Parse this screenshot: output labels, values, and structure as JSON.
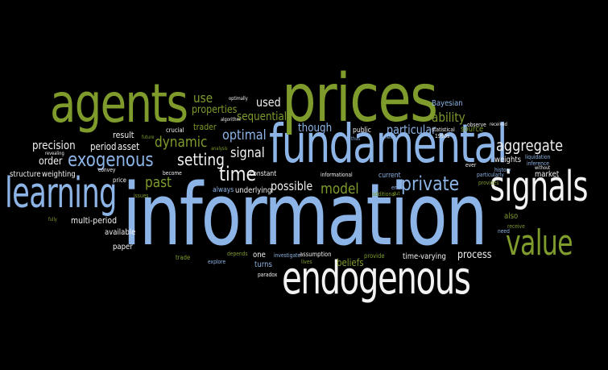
{
  "colors": {
    "background": "#000000",
    "green": "#7e9b2c",
    "blue": "#8db4e6",
    "white": "#f2f2f2",
    "grey": "#a9a9a9"
  },
  "words": [
    {
      "id": "information",
      "text": "information",
      "color": "blue"
    },
    {
      "id": "fundamental",
      "text": "fundamental",
      "color": "blue"
    },
    {
      "id": "prices",
      "text": "prices",
      "color": "green"
    },
    {
      "id": "agents",
      "text": "agents",
      "color": "green"
    },
    {
      "id": "signals",
      "text": "signals",
      "color": "white"
    },
    {
      "id": "endogenous",
      "text": "endogenous",
      "color": "white"
    },
    {
      "id": "learning",
      "text": "learning",
      "color": "blue"
    },
    {
      "id": "value",
      "text": "value",
      "color": "green"
    },
    {
      "id": "exogenous",
      "text": "exogenous",
      "color": "blue"
    },
    {
      "id": "private",
      "text": "private",
      "color": "blue"
    },
    {
      "id": "time",
      "text": "time",
      "color": "white"
    },
    {
      "id": "setting",
      "text": "setting",
      "color": "white"
    },
    {
      "id": "aggregate",
      "text": "aggregate",
      "color": "white"
    },
    {
      "id": "optimal",
      "text": "optimal",
      "color": "blue"
    },
    {
      "id": "dynamic",
      "text": "dynamic",
      "color": "green"
    },
    {
      "id": "past",
      "text": "past",
      "color": "green"
    },
    {
      "id": "signal",
      "text": "signal",
      "color": "white"
    },
    {
      "id": "model",
      "text": "model",
      "color": "green"
    },
    {
      "id": "possible",
      "text": "possible",
      "color": "white"
    },
    {
      "id": "use",
      "text": "use",
      "color": "green"
    },
    {
      "id": "used",
      "text": "used",
      "color": "white"
    },
    {
      "id": "properties",
      "text": "properties",
      "color": "green"
    },
    {
      "id": "sequential",
      "text": "sequential",
      "color": "green"
    },
    {
      "id": "ability",
      "text": "ability",
      "color": "green"
    },
    {
      "id": "though",
      "text": "though",
      "color": "blue"
    },
    {
      "id": "particular",
      "text": "particular",
      "color": "blue"
    },
    {
      "id": "precision",
      "text": "precision",
      "color": "white"
    },
    {
      "id": "period",
      "text": "period",
      "color": "white"
    },
    {
      "id": "asset",
      "text": "asset",
      "color": "white"
    },
    {
      "id": "order",
      "text": "order",
      "color": "white"
    },
    {
      "id": "process",
      "text": "process",
      "color": "white"
    },
    {
      "id": "beliefs",
      "text": "beliefs",
      "color": "green"
    },
    {
      "id": "weights",
      "text": "weights",
      "color": "white"
    },
    {
      "id": "source",
      "text": "source",
      "color": "green"
    },
    {
      "id": "bayesian",
      "text": "Bayesian",
      "color": "blue"
    },
    {
      "id": "result",
      "text": "result",
      "color": "white"
    },
    {
      "id": "trader",
      "text": "trader",
      "color": "green"
    },
    {
      "id": "crucial",
      "text": "crucial",
      "color": "white"
    },
    {
      "id": "structure",
      "text": "structure",
      "color": "white"
    },
    {
      "id": "weighting",
      "text": "weighting",
      "color": "white"
    },
    {
      "id": "multi-period",
      "text": "multi-period",
      "color": "white"
    },
    {
      "id": "available",
      "text": "available",
      "color": "white"
    },
    {
      "id": "paper",
      "text": "paper",
      "color": "white"
    },
    {
      "id": "constant",
      "text": "constant",
      "color": "white"
    },
    {
      "id": "underlying",
      "text": "underlying",
      "color": "white"
    },
    {
      "id": "always",
      "text": "always",
      "color": "blue"
    },
    {
      "id": "one",
      "text": "one",
      "color": "white"
    },
    {
      "id": "turns",
      "text": "turns",
      "color": "blue"
    },
    {
      "id": "paradox",
      "text": "paradox",
      "color": "white"
    },
    {
      "id": "explore",
      "text": "explore",
      "color": "blue"
    },
    {
      "id": "trade",
      "text": "trade",
      "color": "green"
    },
    {
      "id": "depends",
      "text": "depends",
      "color": "green"
    },
    {
      "id": "investigate",
      "text": "investigate",
      "color": "blue"
    },
    {
      "id": "assumption",
      "text": "assumption",
      "color": "white"
    },
    {
      "id": "provide",
      "text": "provide",
      "color": "green"
    },
    {
      "id": "time-varying",
      "text": "time-varying",
      "color": "white"
    },
    {
      "id": "current",
      "text": "current",
      "color": "blue"
    },
    {
      "id": "additional",
      "text": "additional",
      "color": "green"
    },
    {
      "id": "informational",
      "text": "informational",
      "color": "white"
    },
    {
      "id": "market",
      "text": "market",
      "color": "white"
    },
    {
      "id": "also",
      "text": "also",
      "color": "green"
    },
    {
      "id": "receive",
      "text": "receive",
      "color": "green"
    },
    {
      "id": "need",
      "text": "need",
      "color": "blue"
    },
    {
      "id": "liquidation",
      "text": "liquidation",
      "color": "blue"
    },
    {
      "id": "inference",
      "text": "inference",
      "color": "blue"
    },
    {
      "id": "without",
      "text": "without",
      "color": "white"
    },
    {
      "id": "history",
      "text": "history",
      "color": "blue"
    },
    {
      "id": "public",
      "text": "public",
      "color": "white"
    },
    {
      "id": "statistical",
      "text": "statistical",
      "color": "white"
    },
    {
      "id": "observe",
      "text": "observe",
      "color": "white"
    },
    {
      "id": "received",
      "text": "received",
      "color": "white"
    },
    {
      "id": "1990s",
      "text": "1990s",
      "color": "white"
    },
    {
      "id": "ever",
      "text": "ever",
      "color": "white"
    },
    {
      "id": "provides",
      "text": "provides",
      "color": "green"
    },
    {
      "id": "particularly",
      "text": "particularly",
      "color": "blue"
    },
    {
      "id": "price",
      "text": "price",
      "color": "white"
    },
    {
      "id": "convey",
      "text": "convey",
      "color": "white"
    },
    {
      "id": "revealing",
      "text": "revealing",
      "color": "white"
    },
    {
      "id": "issues",
      "text": "issues",
      "color": "green"
    },
    {
      "id": "become",
      "text": "become",
      "color": "white"
    },
    {
      "id": "optimally",
      "text": "optimally",
      "color": "white"
    },
    {
      "id": "algorithm",
      "text": "algorithm",
      "color": "white"
    },
    {
      "id": "future",
      "text": "future",
      "color": "green"
    },
    {
      "id": "means",
      "text": "means",
      "color": "blue"
    },
    {
      "id": "end",
      "text": "end",
      "color": "blue"
    },
    {
      "id": "put",
      "text": "put",
      "color": "green"
    },
    {
      "id": "lives",
      "text": "lives",
      "color": "green"
    },
    {
      "id": "fully",
      "text": "fully",
      "color": "green"
    },
    {
      "id": "thus",
      "text": "thus",
      "color": "blue"
    },
    {
      "id": "analysis",
      "text": "analysis",
      "color": "green"
    }
  ]
}
